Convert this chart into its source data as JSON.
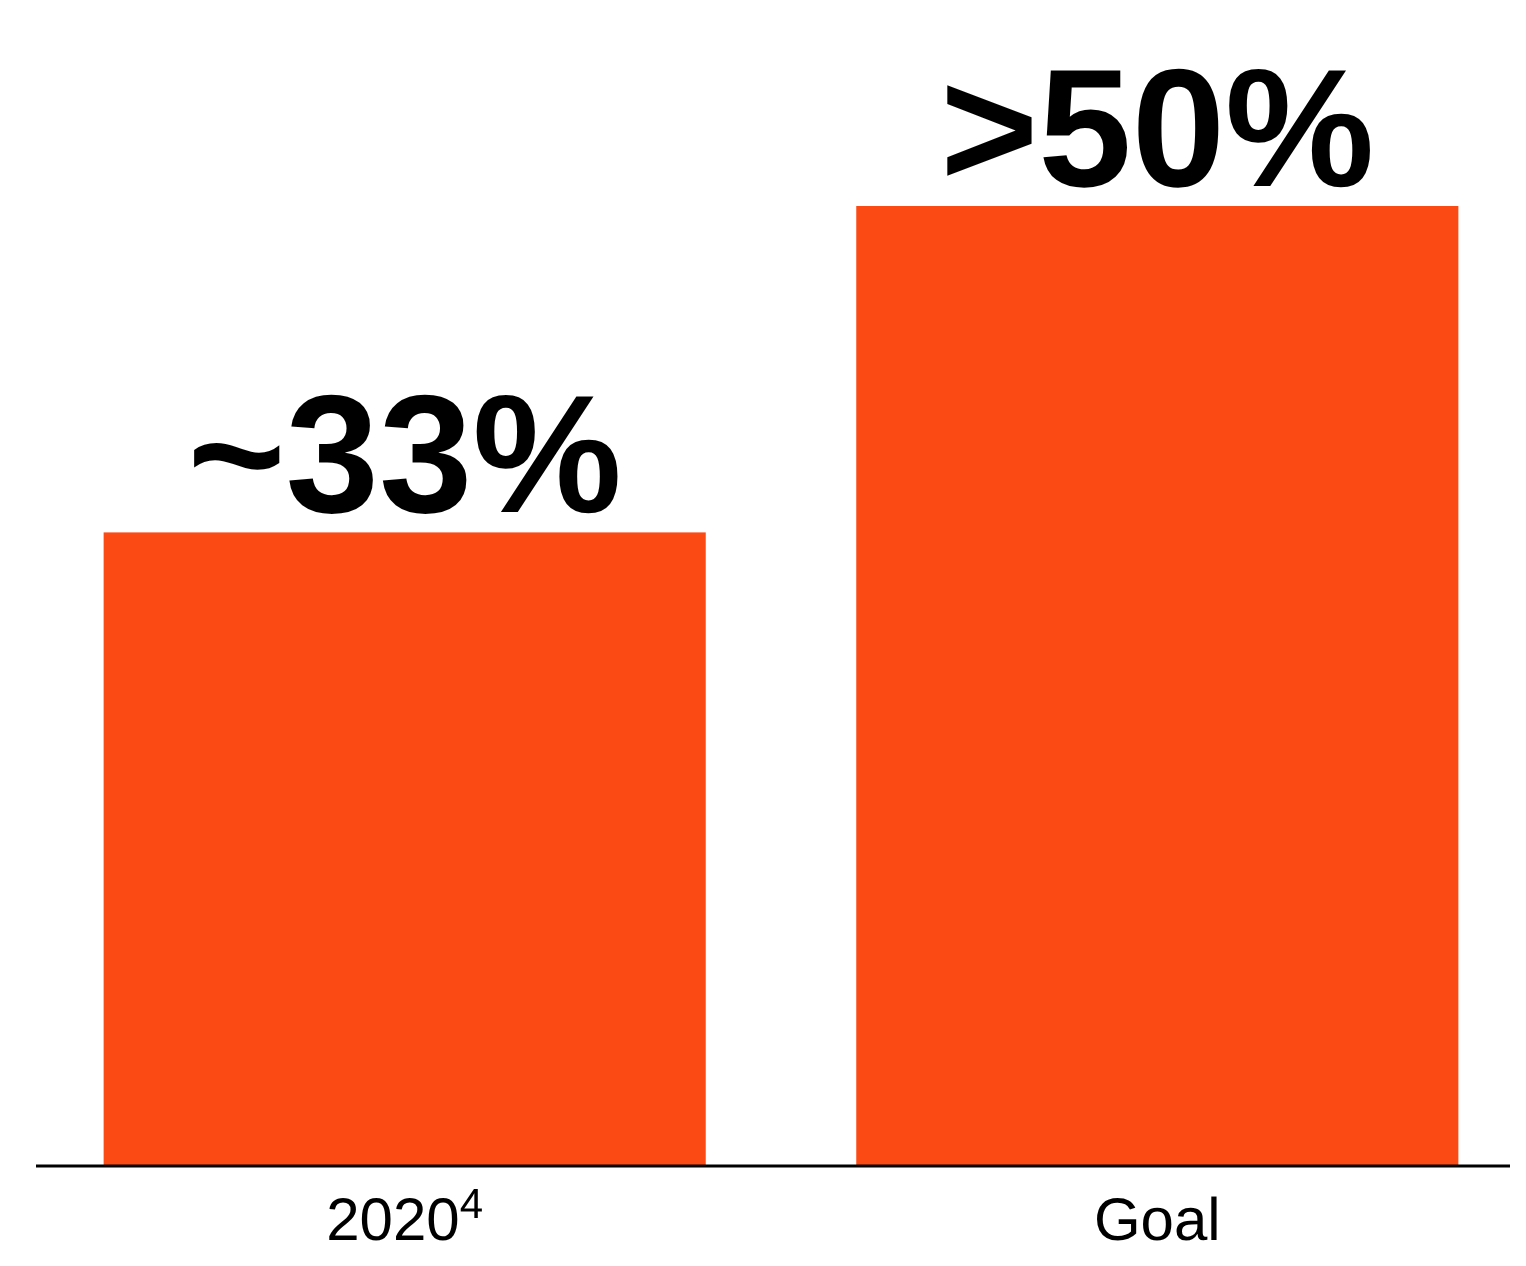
{
  "chart_data": {
    "type": "bar",
    "categories": [
      "2020$^{4}$",
      "Goal"
    ],
    "values": [
      33,
      50
    ],
    "value_labels": [
      "~33%",
      ">50%"
    ],
    "color": "#fc4a14",
    "ylim": [
      0,
      50
    ],
    "tick_labels": "x"
  }
}
